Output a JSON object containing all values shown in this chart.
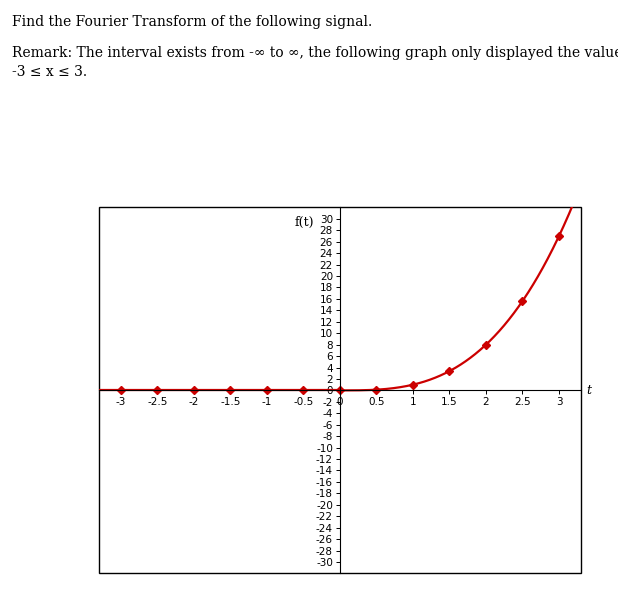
{
  "title_text": "Find the Fourier Transform of the following signal.",
  "remark_line1": "Remark: The interval exists from -∞ to ∞, the following graph only displayed the values from",
  "remark_line2": "-3 ≤ x ≤ 3.",
  "xlabel": "t",
  "ylabel": "f(t)",
  "xlim": [
    -3.3,
    3.3
  ],
  "ylim": [
    -32,
    32
  ],
  "xticks": [
    -3,
    -2.5,
    -2,
    -1.5,
    -1,
    -0.5,
    0,
    0.5,
    1,
    1.5,
    2,
    2.5,
    3
  ],
  "yticks": [
    -30,
    -28,
    -26,
    -24,
    -22,
    -20,
    -18,
    -16,
    -14,
    -12,
    -10,
    -8,
    -6,
    -4,
    -2,
    0,
    2,
    4,
    6,
    8,
    10,
    12,
    14,
    16,
    18,
    20,
    22,
    24,
    26,
    28,
    30
  ],
  "marker_x": [
    -3,
    -2.5,
    -2,
    -1.5,
    -1,
    -0.5,
    0,
    0.5,
    1,
    1.5,
    2,
    2.5,
    3
  ],
  "line_color": "#cc0000",
  "marker_color": "#cc0000",
  "marker_style": "D",
  "marker_size": 4,
  "line_width": 1.6,
  "background_color": "#ffffff",
  "figure_background": "#ffffff",
  "tick_fontsize": 7.5,
  "label_fontsize": 9,
  "text_fontsize": 10
}
